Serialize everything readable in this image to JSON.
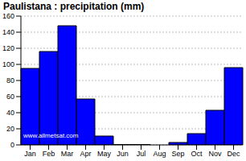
{
  "chart_data": {
    "type": "bar",
    "title": "Paulistana : precipitation (mm)",
    "categories": [
      "Jan",
      "Feb",
      "Mar",
      "Apr",
      "May",
      "Jun",
      "Jul",
      "Aug",
      "Sep",
      "Oct",
      "Nov",
      "Dec"
    ],
    "values": [
      95,
      116,
      148,
      57,
      11,
      0.5,
      0.5,
      0,
      3,
      14,
      43,
      96
    ],
    "color": "#0000ff",
    "ylim": [
      0,
      160
    ],
    "yticks": [
      0,
      20,
      40,
      60,
      80,
      100,
      120,
      140,
      160
    ],
    "grid": true,
    "annotations": [
      "www.allmetsat.com"
    ]
  }
}
